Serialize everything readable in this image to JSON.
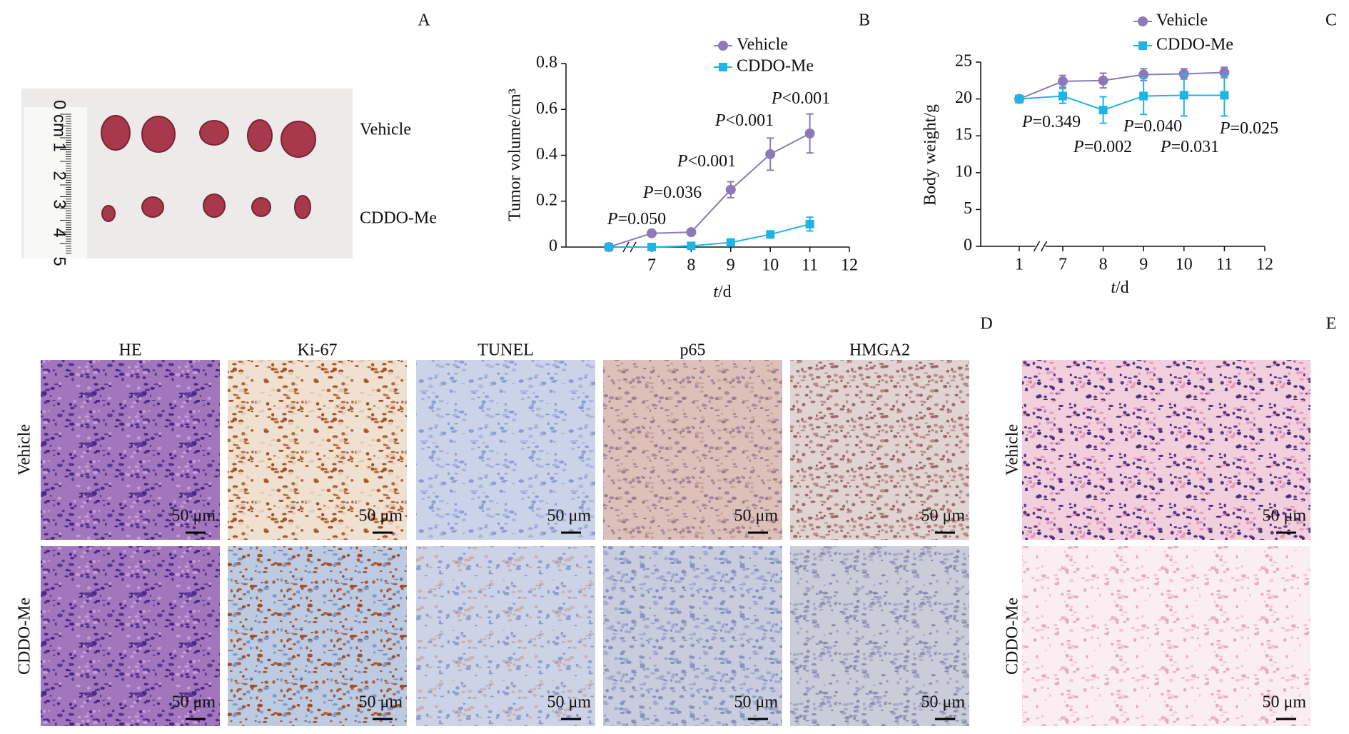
{
  "panel_labels": [
    "A",
    "B",
    "C",
    "D",
    "E"
  ],
  "photo": {
    "groups": [
      "Vehicle",
      "CDDO-Me"
    ],
    "ruler": [
      "0 cm",
      "1",
      "2",
      "3",
      "4",
      "5"
    ]
  },
  "chart_data": [
    {
      "type": "line",
      "categories": [
        null,
        7,
        8,
        9,
        10,
        11,
        12
      ],
      "series": [
        {
          "name": "Vehicle",
          "color": "#8c7ab8",
          "marker": "circle",
          "values": [
            0,
            0.06,
            0.065,
            0.25,
            0.405,
            0.495,
            null
          ],
          "errors": [
            0,
            0,
            0,
            0.035,
            0.07,
            0.085,
            null
          ]
        },
        {
          "name": "CDDO-Me",
          "color": "#1fb4e4",
          "marker": "square",
          "values": [
            0,
            0,
            0.005,
            0.02,
            0.055,
            0.1,
            null
          ],
          "errors": [
            0,
            0,
            0,
            0.01,
            0.015,
            0.03,
            null
          ]
        }
      ],
      "ylim": [
        0,
        0.8
      ],
      "yticks": [
        0,
        0.2,
        0.4,
        0.6,
        0.8
      ],
      "xlabel": "t/d",
      "ylabel": "Tumor volume/cm³",
      "axis_break": true,
      "annotations": [
        "P=0.050",
        "P=0.036",
        "P<0.001",
        "P<0.001",
        "P<0.001"
      ]
    },
    {
      "type": "line",
      "categories": [
        1,
        7,
        8,
        9,
        10,
        11,
        12
      ],
      "series": [
        {
          "name": "Vehicle",
          "color": "#8c7ab8",
          "marker": "circle",
          "values": [
            20,
            22.4,
            22.5,
            23.3,
            23.4,
            23.6,
            null
          ],
          "errors": [
            0.5,
            0.8,
            1.0,
            0.8,
            0.7,
            0.7,
            null
          ]
        },
        {
          "name": "CDDO-Me",
          "color": "#1fb4e4",
          "marker": "square",
          "values": [
            20,
            20.4,
            18.5,
            20.4,
            20.5,
            20.5,
            null
          ],
          "errors": [
            0.5,
            1.0,
            1.8,
            2.5,
            2.8,
            2.8,
            null
          ]
        }
      ],
      "ylim": [
        0,
        25
      ],
      "yticks": [
        0,
        5,
        10,
        15,
        20,
        25
      ],
      "xlabel": "t/d",
      "ylabel": "Body weight/g",
      "axis_break": true,
      "annotations": [
        "P=0.349",
        "P=0.002",
        "P=0.040",
        "P=0.031",
        "P=0.025"
      ]
    }
  ],
  "histology_d": {
    "columns": [
      "HE",
      "Ki-67",
      "TUNEL",
      "p65",
      "HMGA2"
    ],
    "rows": [
      "Vehicle",
      "CDDO-Me"
    ],
    "scale_bar": "50 μm"
  },
  "histology_e": {
    "rows": [
      "Vehicle",
      "CDDO-Me"
    ],
    "scale_bar": "50 μm"
  }
}
